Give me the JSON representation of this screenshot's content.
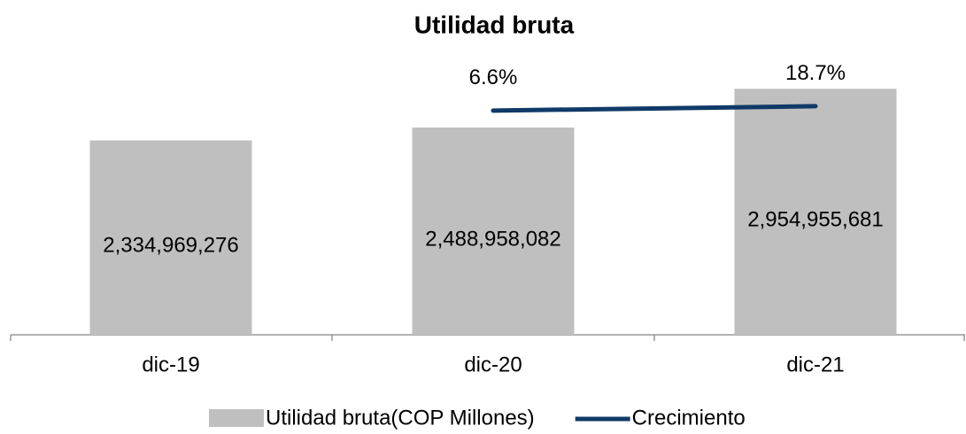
{
  "chart_data": {
    "type": "bar-line",
    "title": "Utilidad bruta",
    "categories": [
      "dic-19",
      "dic-20",
      "dic-21"
    ],
    "ylim": [
      0,
      3500000000
    ],
    "y2lim": [
      -605,
      190
    ],
    "series": [
      {
        "name": "Utilidad bruta(COP Millones)",
        "type": "bar",
        "color": "#bfbfbf",
        "values": [
          2334969276,
          2488958082,
          2954955681
        ],
        "value_labels": [
          "2,334,969,276",
          "2,488,958,082",
          "2,954,955,681"
        ]
      },
      {
        "name": "Crecimiento",
        "type": "line",
        "axis": "y2",
        "color": "#0f3a68",
        "values": [
          null,
          6.6,
          18.7
        ],
        "value_labels": [
          null,
          "6.6%",
          "18.7%"
        ]
      }
    ]
  }
}
